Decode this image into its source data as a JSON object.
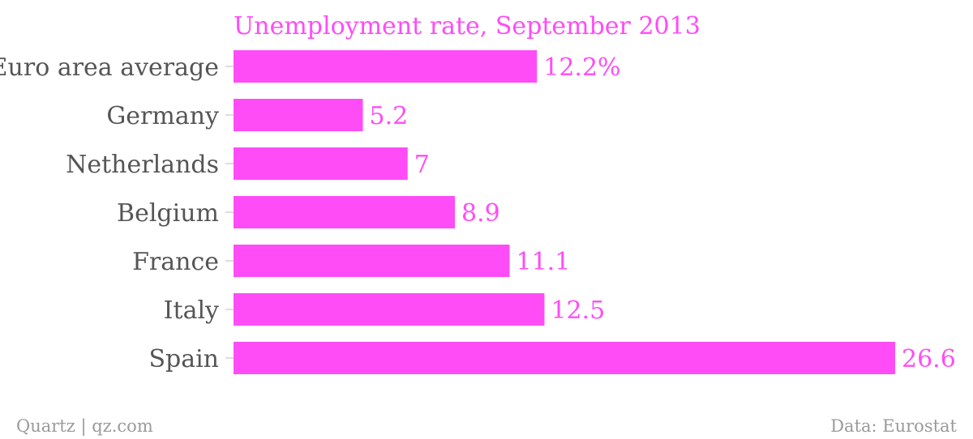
{
  "chart_data": {
    "type": "bar",
    "orientation": "horizontal",
    "title": "Unemployment rate, September 2013",
    "categories": [
      "Euro area average",
      "Germany",
      "Netherlands",
      "Belgium",
      "France",
      "Italy",
      "Spain"
    ],
    "values": [
      12.2,
      5.2,
      7,
      8.9,
      11.1,
      12.5,
      26.6
    ],
    "value_labels": [
      "12.2%",
      "5.2",
      "7",
      "8.9",
      "11.1",
      "12.5",
      "26.6"
    ],
    "xlabel": "",
    "ylabel": "",
    "xlim": [
      0,
      26.6
    ],
    "grid": false,
    "legend": "none"
  },
  "footer": {
    "source_left": "Quartz | qz.com",
    "source_right": "Data: Eurostat"
  },
  "colors": {
    "bar": "#ff4cf6",
    "title": "#ff4cf6",
    "value_label": "#ff4cf6",
    "category_label": "#555555",
    "footer": "#9a9a9a",
    "tick": "#dddddd"
  }
}
